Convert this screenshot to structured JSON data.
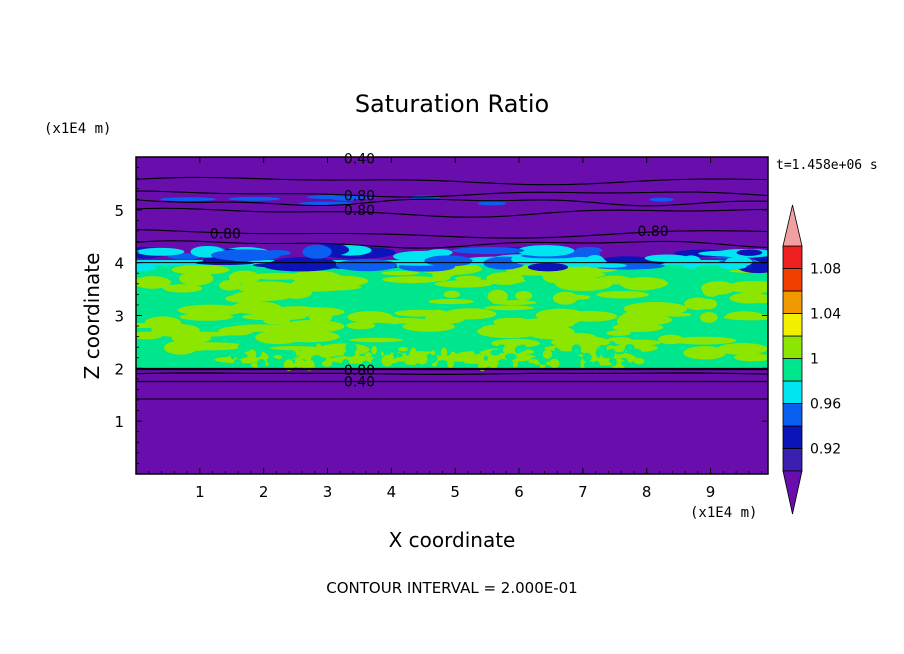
{
  "chart_data": {
    "type": "heatmap",
    "title": "Saturation Ratio",
    "xlabel": "X coordinate",
    "ylabel": "Z coordinate",
    "x_unit": "(x1E4 m)",
    "y_unit": "(x1E4 m)",
    "time_label": "t=1.458e+06 s",
    "footer": "CONTOUR INTERVAL = 2.000E-01",
    "xlim": [
      0,
      9.9
    ],
    "ylim": [
      0,
      6
    ],
    "x_ticks": [
      "1",
      "2",
      "3",
      "4",
      "5",
      "6",
      "7",
      "8",
      "9"
    ],
    "y_ticks": [
      "1",
      "2",
      "3",
      "4",
      "5"
    ],
    "colorbar": {
      "levels": [
        0.9,
        0.92,
        0.94,
        0.96,
        0.98,
        1.0,
        1.02,
        1.04,
        1.06,
        1.08,
        1.1
      ],
      "labels": [
        "0.92",
        "0.96",
        "1",
        "1.04",
        "1.08"
      ],
      "colors": [
        "#6a0dad",
        "#3a1fb0",
        "#0a14b8",
        "#0a5ef0",
        "#00e6f0",
        "#00e68c",
        "#8ce600",
        "#f0f000",
        "#f09a00",
        "#f04000",
        "#f02020",
        "#f0a0a0"
      ]
    },
    "regions": [
      {
        "z_range": [
          0,
          2.0
        ],
        "level": "< 0.90"
      },
      {
        "z_range": [
          2.0,
          4.0
        ],
        "level": "0.98 - 1.02"
      },
      {
        "z_range": [
          4.0,
          6.0
        ],
        "level": "< 0.92"
      }
    ],
    "contour_labels": [
      {
        "text": "0.40",
        "x": 3.5,
        "z": 5.97
      },
      {
        "text": "0.80",
        "x": 3.5,
        "z": 5.27
      },
      {
        "text": "0.80",
        "x": 3.5,
        "z": 5.0
      },
      {
        "text": "0.80",
        "x": 1.4,
        "z": 4.55
      },
      {
        "text": "0.80",
        "x": 8.1,
        "z": 4.6
      },
      {
        "text": "0.80",
        "x": 3.5,
        "z": 1.97
      },
      {
        "text": "0.40",
        "x": 3.5,
        "z": 1.75
      }
    ]
  }
}
